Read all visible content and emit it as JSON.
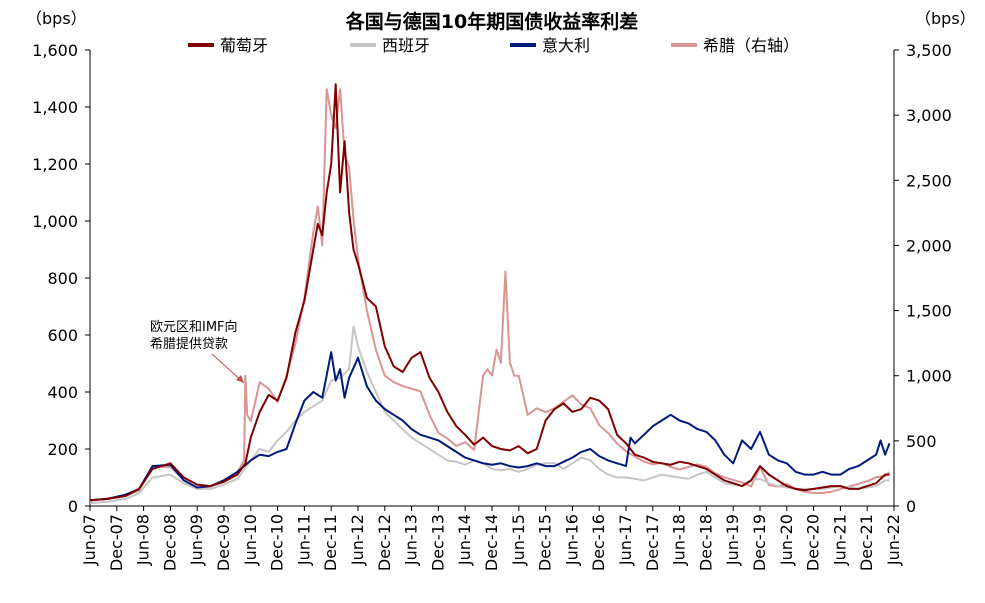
{
  "chart_data": {
    "type": "line",
    "title": "各国与德国10年期国债收益率利差",
    "y_left_unit": "（bps）",
    "y_right_unit": "（bps）",
    "y_left_range": [
      0,
      1600
    ],
    "y_right_range": [
      0,
      3500
    ],
    "y_left_ticks": [
      "0",
      "200",
      "400",
      "600",
      "800",
      "1,000",
      "1,200",
      "1,400",
      "1,600"
    ],
    "y_right_ticks": [
      "0",
      "500",
      "1,000",
      "1,500",
      "2,000",
      "2,500",
      "3,000",
      "3,500"
    ],
    "x_ticks": [
      "Jun-07",
      "Dec-07",
      "Jun-08",
      "Dec-08",
      "Jun-09",
      "Dec-09",
      "Jun-10",
      "Dec-10",
      "Jun-11",
      "Dec-11",
      "Jun-12",
      "Dec-12",
      "Jun-13",
      "Dec-13",
      "Jun-14",
      "Dec-14",
      "Jun-15",
      "Dec-15",
      "Jun-16",
      "Dec-16",
      "Jun-17",
      "Dec-17",
      "Jun-18",
      "Dec-18",
      "Jun-19",
      "Dec-19",
      "Jun-20",
      "Dec-20",
      "Jun-21",
      "Dec-21",
      "Jun-22"
    ],
    "annotation": {
      "line1": "欧元区和IMF向",
      "line2": "希腊提供贷款",
      "x": 34.8
    },
    "legend_position": "top",
    "series": [
      {
        "name": "葡萄牙",
        "color": "#7f0000",
        "axis": "left",
        "x": [
          0,
          4,
          8,
          11,
          14,
          18,
          21,
          24,
          27,
          30,
          33,
          34.8,
          36,
          38,
          40,
          42,
          44,
          46,
          48,
          50,
          51,
          52,
          53,
          54,
          55,
          56,
          57,
          58,
          59,
          60,
          62,
          64,
          66,
          68,
          70,
          72,
          74,
          76,
          78,
          80,
          82,
          84,
          86,
          88,
          90,
          92,
          94,
          96,
          98,
          100,
          102,
          104,
          106,
          108,
          110,
          112,
          114,
          116,
          118,
          120,
          122,
          124,
          126,
          128,
          130,
          132,
          134,
          136,
          138,
          140,
          142,
          144,
          146,
          148,
          150,
          152,
          154,
          156,
          158,
          160,
          162,
          164,
          166,
          168,
          170,
          172,
          174,
          176,
          178,
          179
        ],
        "y": [
          20,
          25,
          35,
          60,
          130,
          150,
          100,
          75,
          70,
          85,
          110,
          150,
          240,
          330,
          390,
          370,
          450,
          610,
          720,
          900,
          990,
          950,
          1100,
          1200,
          1480,
          1100,
          1280,
          1030,
          900,
          850,
          730,
          700,
          560,
          490,
          470,
          520,
          540,
          450,
          400,
          330,
          280,
          250,
          215,
          240,
          210,
          200,
          195,
          210,
          185,
          200,
          300,
          340,
          360,
          330,
          340,
          380,
          370,
          340,
          250,
          220,
          180,
          170,
          155,
          150,
          145,
          155,
          150,
          140,
          130,
          110,
          90,
          80,
          70,
          90,
          140,
          110,
          90,
          70,
          60,
          55,
          60,
          65,
          70,
          70,
          60,
          60,
          70,
          80,
          110,
          110
        ]
      },
      {
        "name": "西班牙",
        "color": "#c6c6c6",
        "axis": "left",
        "x": [
          0,
          4,
          8,
          11,
          14,
          18,
          21,
          24,
          27,
          30,
          33,
          36,
          38,
          40,
          42,
          44,
          46,
          48,
          50,
          52,
          54,
          56,
          58,
          59,
          60,
          62,
          64,
          66,
          68,
          70,
          72,
          74,
          76,
          78,
          80,
          82,
          84,
          86,
          88,
          90,
          92,
          94,
          96,
          98,
          100,
          102,
          104,
          106,
          108,
          110,
          112,
          114,
          116,
          118,
          120,
          122,
          124,
          126,
          128,
          130,
          132,
          134,
          136,
          138,
          140,
          142,
          144,
          146,
          148,
          150,
          152,
          154,
          156,
          158,
          160,
          162,
          164,
          166,
          168,
          170,
          172,
          174,
          176,
          178,
          179
        ],
        "y": [
          10,
          15,
          25,
          45,
          100,
          110,
          80,
          60,
          60,
          75,
          95,
          160,
          200,
          190,
          230,
          260,
          300,
          330,
          350,
          370,
          440,
          450,
          480,
          630,
          560,
          470,
          400,
          330,
          300,
          270,
          240,
          220,
          200,
          180,
          160,
          155,
          145,
          160,
          150,
          130,
          125,
          130,
          120,
          130,
          145,
          150,
          150,
          130,
          150,
          170,
          160,
          130,
          110,
          100,
          100,
          95,
          90,
          100,
          110,
          105,
          100,
          95,
          110,
          120,
          100,
          80,
          75,
          70,
          90,
          95,
          80,
          70,
          65,
          60,
          60,
          60,
          60,
          65,
          70,
          65,
          60,
          65,
          70,
          90,
          90
        ]
      },
      {
        "name": "意大利",
        "color": "#001a7a",
        "axis": "left",
        "x": [
          0,
          4,
          8,
          11,
          14,
          18,
          21,
          24,
          27,
          30,
          33,
          36,
          38,
          40,
          42,
          44,
          46,
          48,
          50,
          52,
          54,
          55,
          56,
          57,
          58,
          60,
          62,
          64,
          66,
          68,
          70,
          72,
          74,
          76,
          78,
          80,
          82,
          84,
          86,
          88,
          90,
          92,
          94,
          96,
          98,
          100,
          102,
          104,
          106,
          108,
          110,
          112,
          114,
          116,
          118,
          120,
          121,
          122,
          124,
          126,
          128,
          130,
          132,
          134,
          136,
          138,
          140,
          142,
          144,
          146,
          148,
          150,
          152,
          154,
          156,
          158,
          160,
          162,
          164,
          166,
          168,
          170,
          172,
          174,
          176,
          177,
          178,
          179
        ],
        "y": [
          20,
          25,
          40,
          60,
          140,
          145,
          90,
          65,
          70,
          90,
          120,
          160,
          180,
          175,
          190,
          200,
          290,
          370,
          400,
          380,
          540,
          440,
          480,
          380,
          450,
          520,
          420,
          370,
          340,
          320,
          300,
          270,
          250,
          240,
          230,
          210,
          190,
          170,
          160,
          150,
          145,
          150,
          140,
          135,
          140,
          150,
          140,
          140,
          155,
          170,
          190,
          200,
          175,
          160,
          150,
          140,
          240,
          220,
          250,
          280,
          300,
          320,
          300,
          290,
          270,
          260,
          230,
          180,
          150,
          230,
          200,
          260,
          180,
          160,
          150,
          120,
          110,
          110,
          120,
          110,
          110,
          130,
          140,
          160,
          180,
          230,
          180,
          220
        ]
      },
      {
        "name": "希腊（右轴）",
        "color": "#d99594",
        "axis": "right",
        "x": [
          0,
          4,
          8,
          11,
          14,
          18,
          21,
          24,
          27,
          30,
          33,
          34.5,
          34.8,
          35.2,
          36,
          38,
          40,
          42,
          44,
          46,
          48,
          50,
          51,
          52,
          53,
          54,
          55,
          56,
          57,
          58,
          59,
          60,
          62,
          64,
          66,
          68,
          70,
          72,
          74,
          76,
          78,
          80,
          82,
          84,
          86,
          88,
          89,
          90,
          91,
          92,
          93,
          94,
          95,
          96,
          98,
          100,
          102,
          104,
          106,
          108,
          110,
          112,
          114,
          116,
          118,
          120,
          122,
          124,
          126,
          128,
          130,
          132,
          134,
          136,
          138,
          140,
          142,
          144,
          146,
          148,
          150,
          152,
          154,
          156,
          158,
          160,
          162,
          164,
          166,
          168,
          170,
          172,
          174,
          176,
          178,
          179
        ],
        "y": [
          40,
          60,
          80,
          120,
          300,
          300,
          200,
          140,
          150,
          200,
          260,
          350,
          1000,
          700,
          650,
          950,
          900,
          800,
          1000,
          1250,
          1600,
          2100,
          2300,
          2000,
          3200,
          3000,
          2900,
          3200,
          2700,
          2600,
          2200,
          1900,
          1500,
          1200,
          1000,
          950,
          920,
          900,
          880,
          700,
          560,
          520,
          460,
          490,
          430,
          1000,
          1050,
          1000,
          1200,
          1100,
          1800,
          1100,
          1000,
          1000,
          700,
          750,
          720,
          750,
          800,
          850,
          780,
          750,
          620,
          560,
          480,
          420,
          380,
          340,
          320,
          330,
          300,
          280,
          300,
          320,
          300,
          250,
          220,
          200,
          180,
          150,
          300,
          160,
          150,
          170,
          130,
          110,
          100,
          100,
          110,
          130,
          150,
          170,
          190,
          220,
          230,
          260
        ]
      }
    ]
  }
}
